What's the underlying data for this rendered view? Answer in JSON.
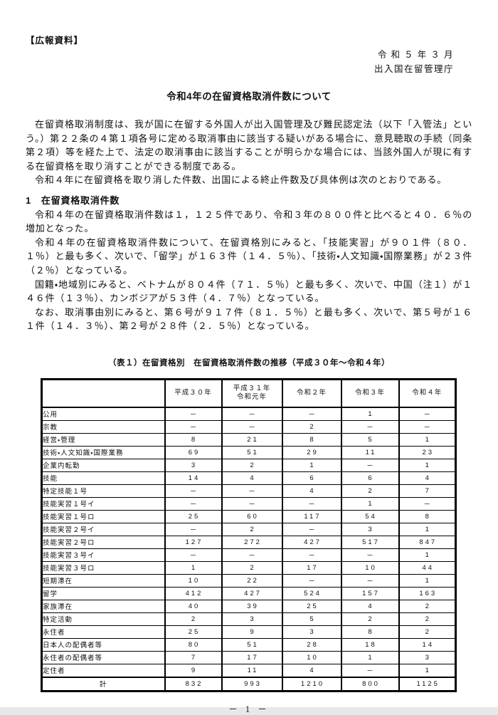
{
  "header": {
    "doc_type_label": "【広報資料】",
    "date_line": "令 和 ５ 年 ３ 月",
    "agency": "出入国在留管理庁",
    "title": "令和4年の在留資格取消件数について"
  },
  "intro_paragraphs": [
    "在留資格取消制度は、我が国に在留する外国人が出入国管理及び難民認定法（以下「入管法」という。）第２２条の４第１項各号に定める取消事由に該当する疑いがある場合に、意見聴取の手続（同条第２項）等を経た上で、法定の取消事由に該当することが明らかな場合には、当該外国人が現に有する在留資格を取り消すことができる制度である。",
    "令和４年に在留資格を取り消した件数、出国による終止件数及び具体例は次のとおりである。"
  ],
  "section1": {
    "heading": "1　在留資格取消件数",
    "paragraphs": [
      "令和４年の在留資格取消件数は１，１２５件であり、令和３年の８００件と比べると４０．６％の増加となった。",
      "令和４年の在留資格取消件数について、在留資格別にみると、「技能実習」が９０１件（８０．１％）と最も多く、次いで、「留学」が１６３件（１４．５％）、「技術・人文知識・国際業務」が２３件（２％）となっている。",
      "国籍・地域別にみると、ベトナムが８０４件（７１．５％）と最も多く、次いで、中国（注１）が１４６件（１３％）、カンボジアが５３件（４．７％）となっている。",
      "なお、取消事由別にみると、第６号が９１７件（８１．５％）と最も多く、次いで、第５号が１６１件（１４．３％）、第２号が２８件（２．５％）となっている。"
    ]
  },
  "table1": {
    "caption": "（表１）在留資格別　在留資格取消件数の推移（平成３０年～令和４年）",
    "col_headers": [
      "平成３０年",
      "平成３１年\n令和元年",
      "令和２年",
      "令和３年",
      "令和４年"
    ],
    "rows": [
      {
        "label": "公用",
        "values": [
          "－",
          "－",
          "－",
          "1",
          "－"
        ]
      },
      {
        "label": "宗教",
        "values": [
          "－",
          "－",
          "2",
          "－",
          "－"
        ]
      },
      {
        "label": "経営・管理",
        "values": [
          "8",
          "21",
          "8",
          "5",
          "1"
        ]
      },
      {
        "label": "技術・人文知識・国際業務",
        "values": [
          "69",
          "51",
          "29",
          "11",
          "23"
        ]
      },
      {
        "label": "企業内転勤",
        "values": [
          "3",
          "2",
          "1",
          "－",
          "1"
        ]
      },
      {
        "label": "技能",
        "values": [
          "14",
          "4",
          "6",
          "6",
          "4"
        ]
      },
      {
        "label": "特定技能１号",
        "values": [
          "－",
          "－",
          "4",
          "2",
          "7"
        ]
      },
      {
        "label": "技能実習１号イ",
        "values": [
          "－",
          "－",
          "－",
          "1",
          "－"
        ]
      },
      {
        "label": "技能実習１号ロ",
        "values": [
          "25",
          "60",
          "117",
          "54",
          "8"
        ]
      },
      {
        "label": "技能実習２号イ",
        "values": [
          "－",
          "2",
          "－",
          "3",
          "1"
        ]
      },
      {
        "label": "技能実習２号ロ",
        "values": [
          "127",
          "272",
          "427",
          "517",
          "847"
        ]
      },
      {
        "label": "技能実習３号イ",
        "values": [
          "－",
          "－",
          "－",
          "－",
          "1"
        ]
      },
      {
        "label": "技能実習３号ロ",
        "values": [
          "1",
          "2",
          "17",
          "10",
          "44"
        ]
      },
      {
        "label": "短期滞在",
        "values": [
          "10",
          "22",
          "－",
          "－",
          "1"
        ]
      },
      {
        "label": "留学",
        "values": [
          "412",
          "427",
          "524",
          "157",
          "163"
        ]
      },
      {
        "label": "家族滞在",
        "values": [
          "40",
          "39",
          "25",
          "4",
          "2"
        ]
      },
      {
        "label": "特定活動",
        "values": [
          "2",
          "3",
          "5",
          "2",
          "2"
        ]
      },
      {
        "label": "永住者",
        "values": [
          "25",
          "9",
          "3",
          "8",
          "2"
        ]
      },
      {
        "label": "日本人の配偶者等",
        "values": [
          "80",
          "51",
          "28",
          "18",
          "14"
        ]
      },
      {
        "label": "永住者の配偶者等",
        "values": [
          "7",
          "17",
          "10",
          "1",
          "3"
        ]
      },
      {
        "label": "定住者",
        "values": [
          "9",
          "11",
          "4",
          "－",
          "1"
        ]
      }
    ],
    "total_row": {
      "label": "計",
      "values": [
        "832",
        "993",
        "1210",
        "800",
        "1125"
      ]
    }
  },
  "footer": {
    "page_number": "－ 1 －"
  }
}
